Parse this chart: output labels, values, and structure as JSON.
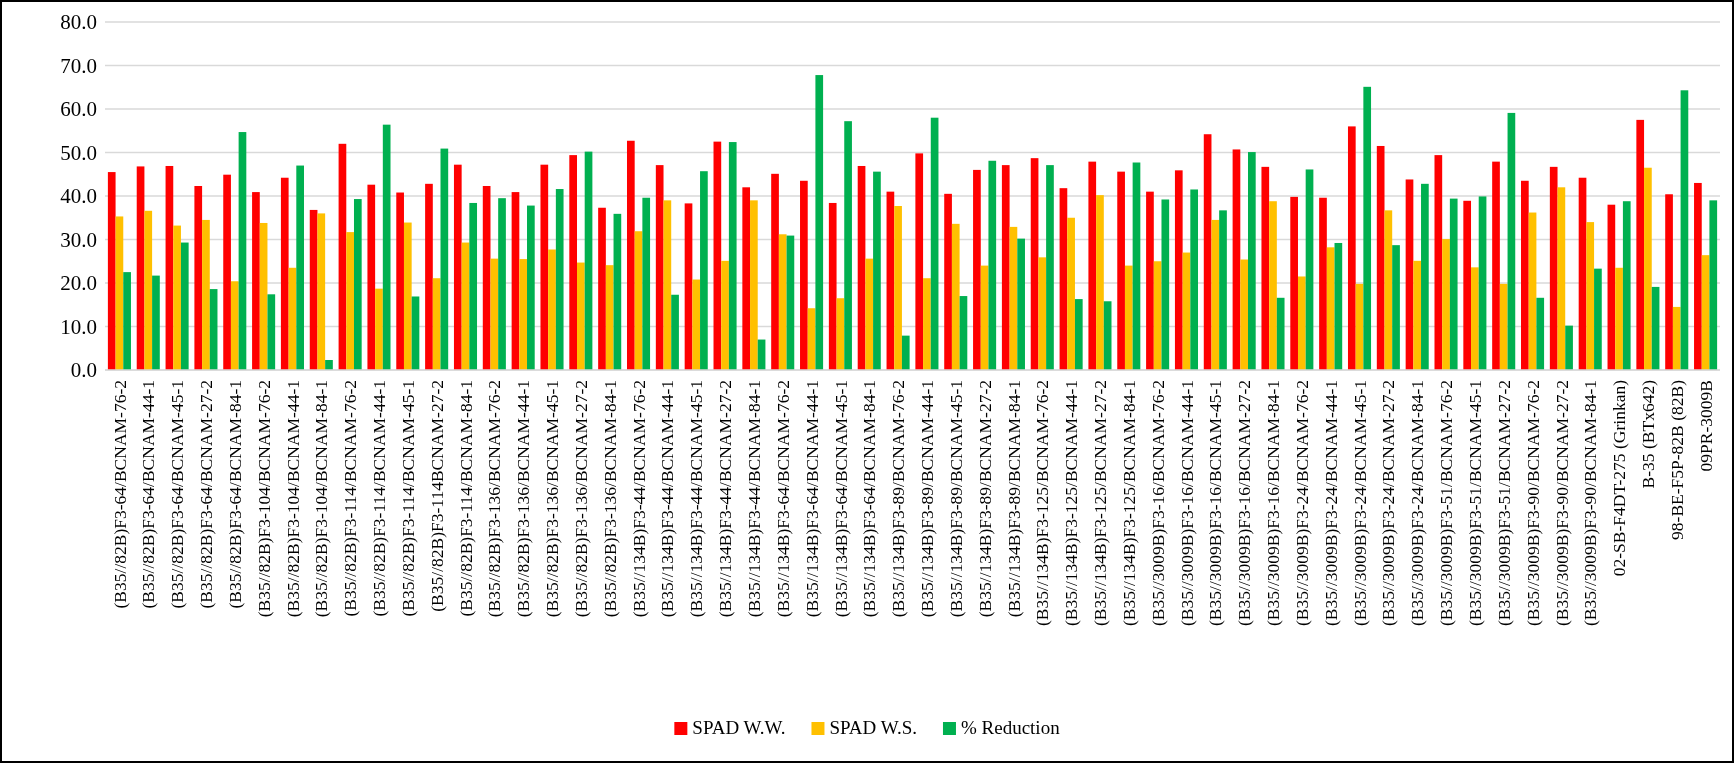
{
  "chart_data": {
    "type": "bar",
    "categories": [
      "(B35//82B)F3-64/BCNAM-76-2",
      "(B35//82B)F3-64/BCNAM-44-1",
      "(B35//82B)F3-64/BCNAM-45-1",
      "(B35//82B)F3-64/BCNAM-27-2",
      "(B35//82B)F3-64/BCNAM-84-1",
      "(B35//82B)F3-104/BCNAM-76-2",
      "(B35//82B)F3-104/BCNAM-44-1",
      "(B35//82B)F3-104/BCNAM-84-1",
      "(B35//82B)F3-114/BCNAM-76-2",
      "(B35//82B)F3-114/BCNAM-44-1",
      "(B35//82B)F3-114/BCNAM-45-1",
      "(B35//82B)F3-114BCNAM-27-2",
      "(B35//82B)F3-114/BCNAM-84-1",
      "(B35//82B)F3-136/BCNAM-76-2",
      "(B35//82B)F3-136/BCNAM-44-1",
      "(B35//82B)F3-136/BCNAM-45-1",
      "(B35//82B)F3-136/BCNAM-27-2",
      "(B35//82B)F3-136/BCNAM-84-1",
      "(B35//134B)F3-44/BCNAM-76-2",
      "(B35//134B)F3-44/BCNAM-44-1",
      "(B35//134B)F3-44/BCNAM-45-1",
      "(B35//134B)F3-44/BCNAM-27-2",
      "(B35//134B)F3-44/BCNAM-84-1",
      "(B35//134B)F3-64/BCNAM-76-2",
      "(B35//134B)F3-64/BCNAM-44-1",
      "(B35//134B)F3-64/BCNAM-45-1",
      "(B35//134B)F3-64/BCNAM-84-1",
      "(B35//134B)F3-89/BCNAM-76-2",
      "(B35//134B)F3-89/BCNAM-44-1",
      "(B35//134B)F3-89/BCNAM-45-1",
      "(B35//134B)F3-89/BCNAM-27-2",
      "(B35//134B)F3-89/BCNAM-84-1",
      "(B35//134B)F3-125/BCNAM-76-2",
      "(B35//134B)F3-125/BCNAM-44-1",
      "(B35//134B)F3-125/BCNAM-27-2",
      "(B35//134B)F3-125/BCNAM-84-1",
      "(B35//3009B)F3-16/BCNAM-76-2",
      "(B35//3009B)F3-16/BCNAM-44-1",
      "(B35//3009B)F3-16/BCNAM-45-1",
      "(B35//3009B)F3-16/BCNAM-27-2",
      "(B35//3009B)F3-16/BCNAM-84-1",
      "(B35//3009B)F3-24/BCNAM-76-2",
      "(B35//3009B)F3-24/BCNAM-44-1",
      "(B35//3009B)F3-24/BCNAM-45-1",
      "(B35//3009B)F3-24/BCNAM-27-2",
      "(B35//3009B)F3-24/BCNAM-84-1",
      "(B35//3009B)F3-51/BCNAM-76-2",
      "(B35//3009B)F3-51/BCNAM-45-1",
      "(B35//3009B)F3-51/BCNAM-27-2",
      "(B35//3009B)F3-90/BCNAM-76-2",
      "(B35//3009B)F3-90/BCNAM-27-2",
      "(B35//3009B)F3-90/BCNAM-84-1",
      "02-SB-F4DT-275 (Grinkan)",
      "B-35 (BTx642)",
      "98-BE-F5P-82B (82B)",
      "09PR-3009B"
    ],
    "series": [
      {
        "name": "SPAD W.W.",
        "color": "#ff0000",
        "values": [
          45.5,
          46.8,
          46.9,
          42.3,
          44.9,
          40.9,
          44.2,
          36.8,
          52.0,
          42.6,
          40.8,
          42.8,
          47.2,
          42.3,
          40.9,
          47.2,
          49.4,
          37.3,
          52.7,
          47.1,
          38.3,
          52.5,
          42.0,
          45.1,
          43.5,
          38.4,
          46.9,
          41.0,
          49.8,
          40.5,
          46.0,
          47.1,
          48.7,
          41.8,
          47.9,
          45.6,
          41.0,
          45.9,
          54.2,
          50.7,
          46.7,
          39.8,
          39.6,
          56.0,
          51.5,
          43.8,
          49.4,
          38.9,
          47.9,
          43.5,
          46.7,
          44.2,
          38.0,
          57.5,
          40.4,
          43.0
        ]
      },
      {
        "name": "SPAD W.S.",
        "color": "#ffc000",
        "values": [
          35.3,
          36.6,
          33.2,
          34.5,
          20.4,
          33.8,
          23.5,
          36.0,
          31.7,
          18.7,
          33.9,
          21.1,
          29.3,
          25.6,
          25.5,
          27.7,
          24.7,
          24.1,
          31.9,
          39.0,
          20.8,
          25.1,
          39.0,
          31.2,
          14.2,
          16.5,
          25.6,
          37.7,
          21.1,
          33.6,
          24.0,
          32.9,
          25.9,
          35.0,
          40.2,
          24.0,
          25.0,
          27.0,
          34.5,
          25.4,
          38.8,
          21.5,
          28.2,
          19.8,
          36.7,
          25.1,
          30.1,
          23.6,
          19.8,
          36.2,
          42.0,
          34.0,
          23.5,
          46.5,
          14.5,
          26.4
        ]
      },
      {
        "name": "% Reduction",
        "color": "#00b050",
        "values": [
          22.5,
          21.7,
          29.3,
          18.6,
          54.7,
          17.4,
          47.0,
          2.3,
          39.3,
          56.4,
          16.9,
          50.9,
          38.4,
          39.5,
          37.8,
          41.6,
          50.2,
          35.9,
          39.6,
          17.3,
          45.7,
          52.4,
          7.0,
          30.9,
          67.8,
          57.2,
          45.6,
          7.9,
          58.0,
          17.0,
          48.1,
          30.2,
          47.1,
          16.3,
          15.8,
          47.7,
          39.2,
          41.5,
          36.7,
          50.1,
          16.6,
          46.1,
          29.2,
          65.1,
          28.7,
          42.8,
          39.4,
          39.9,
          59.1,
          16.6,
          10.2,
          23.3,
          38.8,
          19.1,
          64.3,
          39.0
        ]
      }
    ],
    "ylim": [
      0,
      80
    ],
    "yticks": [
      {
        "value": 0,
        "label": "0.0"
      },
      {
        "value": 10,
        "label": "10.0"
      },
      {
        "value": 20,
        "label": "20.0"
      },
      {
        "value": 30,
        "label": "30.0"
      },
      {
        "value": 40,
        "label": "40.0"
      },
      {
        "value": 50,
        "label": "50.0"
      },
      {
        "value": 60,
        "label": "60.0"
      },
      {
        "value": 70,
        "label": "70.0"
      },
      {
        "value": 80,
        "label": "80.0"
      }
    ],
    "grid": "y",
    "legend": "bottom"
  }
}
